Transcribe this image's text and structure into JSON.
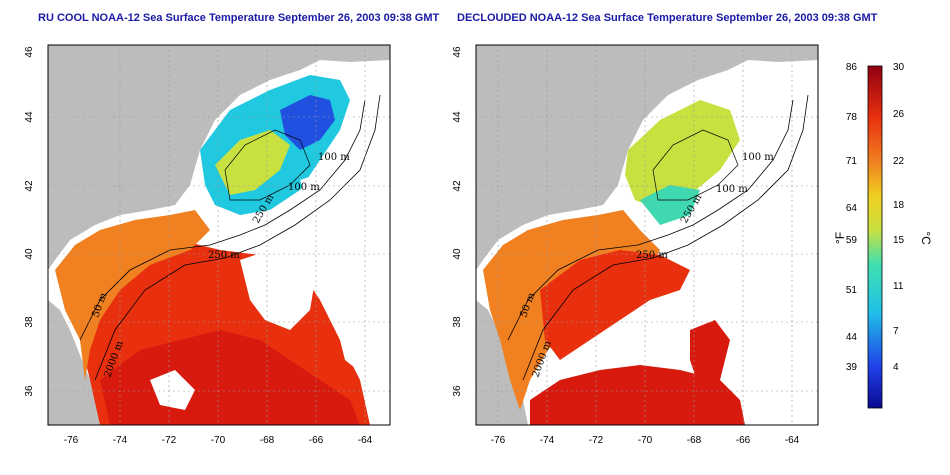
{
  "panels": [
    {
      "title": "RU COOL NOAA-12 Sea Surface Temperature September 26, 2003 09:38 GMT",
      "contour_labels": [
        "100 m",
        "100 m",
        "250 m",
        "250 m",
        "50 m",
        "2000 m"
      ],
      "y_ticks": [
        "46",
        "44",
        "42",
        "40",
        "38",
        "36"
      ],
      "x_ticks": [
        "-76",
        "-74",
        "-72",
        "-70",
        "-68",
        "-66",
        "-64"
      ]
    },
    {
      "title": "DECLOUDED NOAA-12 Sea Surface Temperature September 26, 2003 09:38 GMT",
      "contour_labels": [
        "100 m",
        "100 m",
        "250 m",
        "250 m",
        "50 m",
        "2000 m"
      ],
      "y_ticks": [
        "46",
        "44",
        "42",
        "40",
        "38",
        "36"
      ],
      "x_ticks": [
        "-76",
        "-74",
        "-72",
        "-70",
        "-68",
        "-66",
        "-64"
      ]
    }
  ],
  "colorbar": {
    "fahrenheit_unit": "°F",
    "celsius_unit": "°C",
    "fahrenheit_labels": [
      "86",
      "78",
      "71",
      "64",
      "59",
      "51",
      "44",
      "39"
    ],
    "celsius_labels": [
      "30",
      "26",
      "22",
      "18",
      "15",
      "11",
      "7",
      "4"
    ]
  },
  "colors": {
    "land": "#bcbcbc",
    "title": "#1a1aa6",
    "warm": "#d81a0e",
    "orange": "#f08020",
    "yellow": "#e8e020",
    "cyan": "#20c8e0",
    "blue": "#2050e0"
  }
}
